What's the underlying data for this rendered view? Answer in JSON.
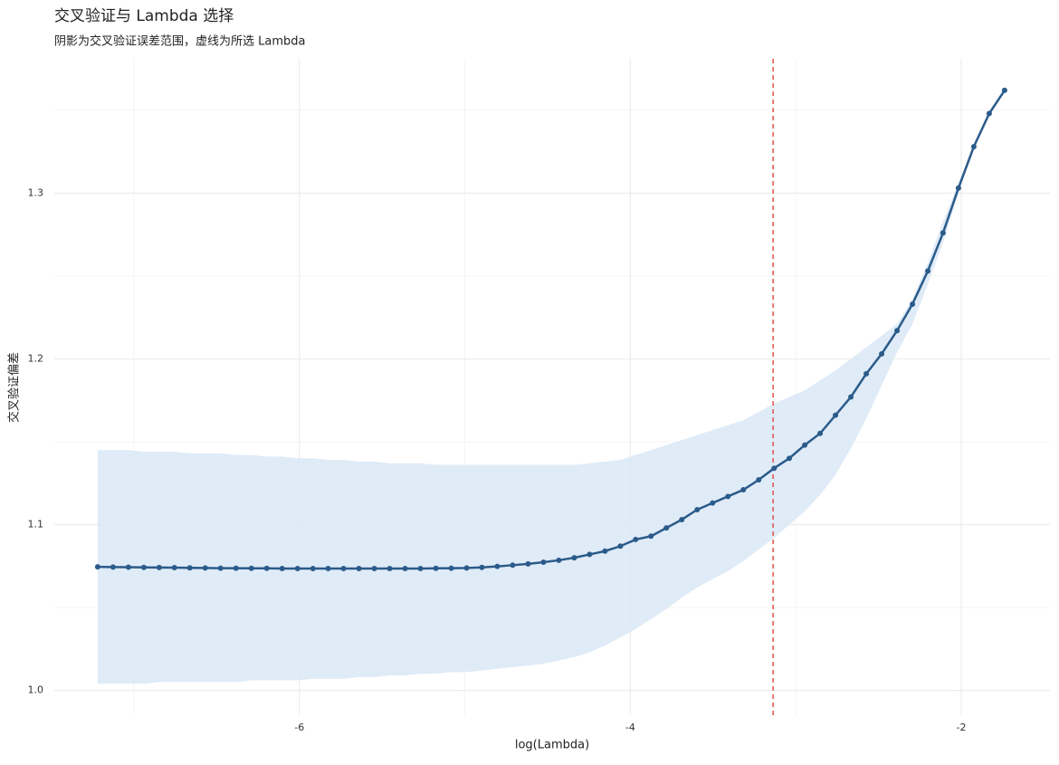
{
  "chart_data": {
    "type": "line",
    "title": "交叉验证与 Lambda 选择",
    "subtitle": "阴影为交叉验证误差范围，虚线为所选 Lambda",
    "x_label": "log(Lambda)",
    "y_label": "交叉验证偏差",
    "x": [
      -7.219,
      -7.126,
      -7.033,
      -6.94,
      -6.847,
      -6.755,
      -6.662,
      -6.569,
      -6.476,
      -6.383,
      -6.29,
      -6.197,
      -6.104,
      -6.011,
      -5.918,
      -5.826,
      -5.733,
      -5.64,
      -5.547,
      -5.454,
      -5.361,
      -5.268,
      -5.175,
      -5.082,
      -4.989,
      -4.897,
      -4.804,
      -4.711,
      -4.618,
      -4.525,
      -4.432,
      -4.339,
      -4.246,
      -4.153,
      -4.06,
      -3.968,
      -3.875,
      -3.782,
      -3.689,
      -3.596,
      -3.503,
      -3.41,
      -3.317,
      -3.224,
      -3.131,
      -3.039,
      -2.946,
      -2.853,
      -2.76,
      -2.667,
      -2.574,
      -2.481,
      -2.388,
      -2.295,
      -2.202,
      -2.11,
      -2.017,
      -1.924,
      -1.831,
      -1.738
    ],
    "values": [
      1.0745,
      1.0744,
      1.0743,
      1.0742,
      1.0741,
      1.074,
      1.0739,
      1.0738,
      1.0737,
      1.0737,
      1.0736,
      1.0736,
      1.0735,
      1.0735,
      1.0735,
      1.0735,
      1.0735,
      1.0735,
      1.0735,
      1.0735,
      1.0735,
      1.0735,
      1.0736,
      1.0737,
      1.0738,
      1.0742,
      1.0748,
      1.0755,
      1.0763,
      1.0773,
      1.0785,
      1.08,
      1.082,
      1.084,
      1.087,
      1.091,
      1.093,
      1.098,
      1.103,
      1.109,
      1.113,
      1.117,
      1.121,
      1.127,
      1.134,
      1.14,
      1.148,
      1.155,
      1.166,
      1.177,
      1.191,
      1.203,
      1.217,
      1.233,
      1.253,
      1.276,
      1.303,
      1.328,
      1.348,
      1.362
    ],
    "upper": [
      1.145,
      1.145,
      1.145,
      1.144,
      1.144,
      1.144,
      1.143,
      1.143,
      1.143,
      1.142,
      1.142,
      1.141,
      1.141,
      1.14,
      1.14,
      1.139,
      1.139,
      1.138,
      1.138,
      1.137,
      1.137,
      1.137,
      1.136,
      1.136,
      1.136,
      1.136,
      1.136,
      1.136,
      1.136,
      1.136,
      1.136,
      1.136,
      1.137,
      1.138,
      1.139,
      1.142,
      1.145,
      1.148,
      1.151,
      1.154,
      1.157,
      1.16,
      1.163,
      1.168,
      1.173,
      1.177,
      1.181,
      1.187,
      1.193,
      1.2,
      1.207,
      1.214,
      1.221,
      1.236,
      1.258,
      1.283,
      1.306,
      1.329,
      1.349,
      1.363
    ],
    "lower": [
      1.004,
      1.004,
      1.004,
      1.004,
      1.005,
      1.005,
      1.005,
      1.005,
      1.005,
      1.005,
      1.006,
      1.006,
      1.006,
      1.006,
      1.007,
      1.007,
      1.007,
      1.008,
      1.008,
      1.009,
      1.009,
      1.01,
      1.01,
      1.011,
      1.011,
      1.012,
      1.013,
      1.014,
      1.015,
      1.016,
      1.018,
      1.02,
      1.023,
      1.027,
      1.032,
      1.037,
      1.043,
      1.049,
      1.056,
      1.062,
      1.067,
      1.072,
      1.078,
      1.085,
      1.092,
      1.1,
      1.108,
      1.118,
      1.13,
      1.146,
      1.164,
      1.184,
      1.204,
      1.221,
      1.245,
      1.27,
      1.3,
      1.327,
      1.347,
      1.361
    ],
    "color": "#2b5b8a",
    "band_color": "#d9e8f6",
    "vline": -3.137,
    "vline_color": "#e0524a",
    "xlim": [
      -7.481,
      -1.464
    ],
    "ylim": [
      0.985,
      1.381
    ],
    "xticks": [
      -6,
      -4,
      -2
    ],
    "yticks": [
      {
        "value": 1,
        "label": "1.0"
      },
      1.1,
      1.2,
      1.3
    ],
    "x_minor_grid": [
      -7,
      -5,
      -3
    ],
    "y_minor_grid": [
      1.05,
      1.15,
      1.25,
      1.35
    ],
    "grid": true
  }
}
